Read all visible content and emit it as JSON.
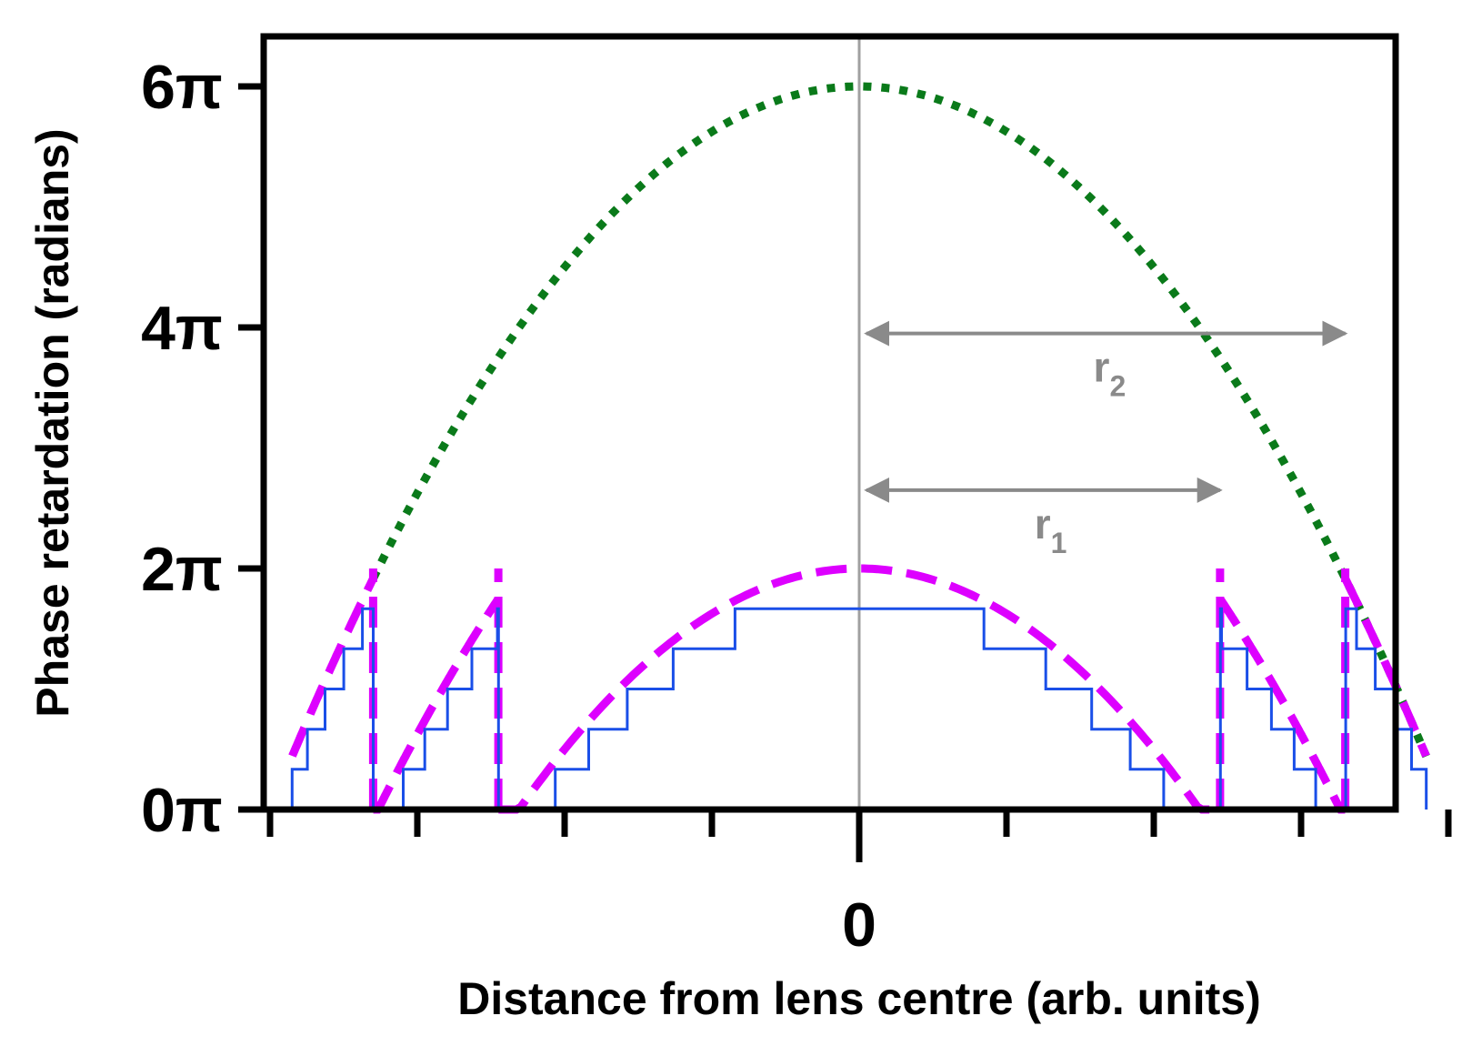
{
  "chart_data": {
    "type": "line",
    "xlabel": "Distance from lens centre (arb. units)",
    "ylabel": "Phase retardation (radians)",
    "xlim": [
      -4,
      4
    ],
    "ylim": [
      0,
      6.4
    ],
    "x_ticks": [
      {
        "value": -4,
        "label": ""
      },
      {
        "value": -3,
        "label": ""
      },
      {
        "value": -2,
        "label": ""
      },
      {
        "value": -1,
        "label": ""
      },
      {
        "value": 0,
        "label": "0"
      },
      {
        "value": 1,
        "label": ""
      },
      {
        "value": 2,
        "label": ""
      },
      {
        "value": 3,
        "label": ""
      },
      {
        "value": 4,
        "label": ""
      }
    ],
    "y_ticks": [
      {
        "value": 0,
        "label": "0π"
      },
      {
        "value": 2,
        "label": "2π"
      },
      {
        "value": 4,
        "label": "4π"
      },
      {
        "value": 6,
        "label": "6π"
      }
    ],
    "y_unit": "π rad",
    "grid": false,
    "legend": "none",
    "center_line": {
      "x": 0,
      "color": "#a0a0a0"
    },
    "annotations": [
      {
        "text": "r",
        "subscript": "2",
        "from_x": 0,
        "to_x": 3.3,
        "y": 3.95,
        "label_x": 1.7,
        "label_y": 3.55
      },
      {
        "text": "r",
        "subscript": "1",
        "from_x": 0,
        "to_x": 2.45,
        "y": 2.65,
        "label_x": 1.3,
        "label_y": 2.25
      }
    ],
    "series": [
      {
        "style": "dotted",
        "color": "#0a7a1a",
        "function": "y = 6 * (1 - (x/4)^2)",
        "x_range": [
          -3.3,
          3.85
        ]
      },
      {
        "style": "dashed",
        "color": "#dd00ff",
        "function": "y = 6*(1-(x/4)^2) - 2k, k = phase wrap zone index (modulo 2π, zones r1 and r2)",
        "zone_boundaries": [
          2.45,
          3.3
        ]
      },
      {
        "style": "step",
        "color": "#1a4fe8",
        "levels": 6,
        "step_height": 0.3333,
        "function": "y = (floor(6 * phi/2 - 1e-9) ) * 2/6 with phi = wrapped phase, quantized into 6 levels"
      }
    ]
  }
}
